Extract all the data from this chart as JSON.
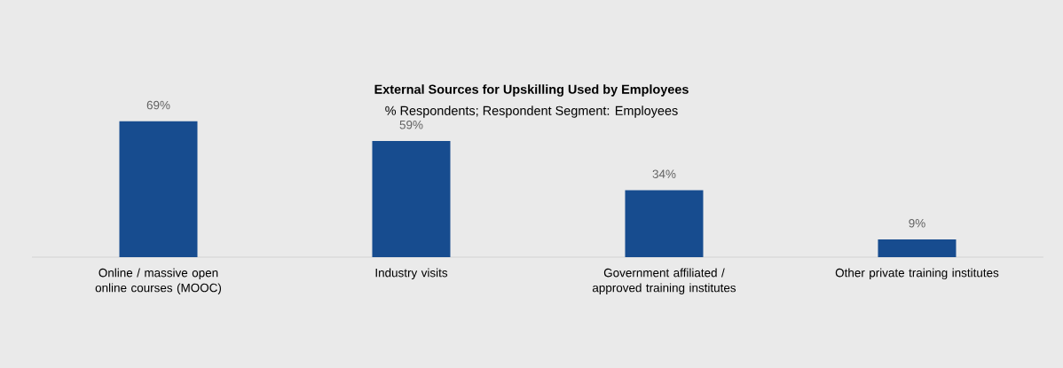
{
  "chart_data": {
    "type": "bar",
    "title": "External Sources for Upskilling Used by Employees",
    "subtitle": "% Respondents; Respondent Segment: Employees",
    "categories": [
      "Online / massive open online courses (MOOC)",
      "Industry visits",
      "Government affiliated / approved training institutes",
      "Other private training institutes"
    ],
    "values": [
      69,
      59,
      34,
      9
    ],
    "value_labels": [
      "69%",
      "59%",
      "34%",
      "9%"
    ],
    "color": "#174c8f"
  }
}
